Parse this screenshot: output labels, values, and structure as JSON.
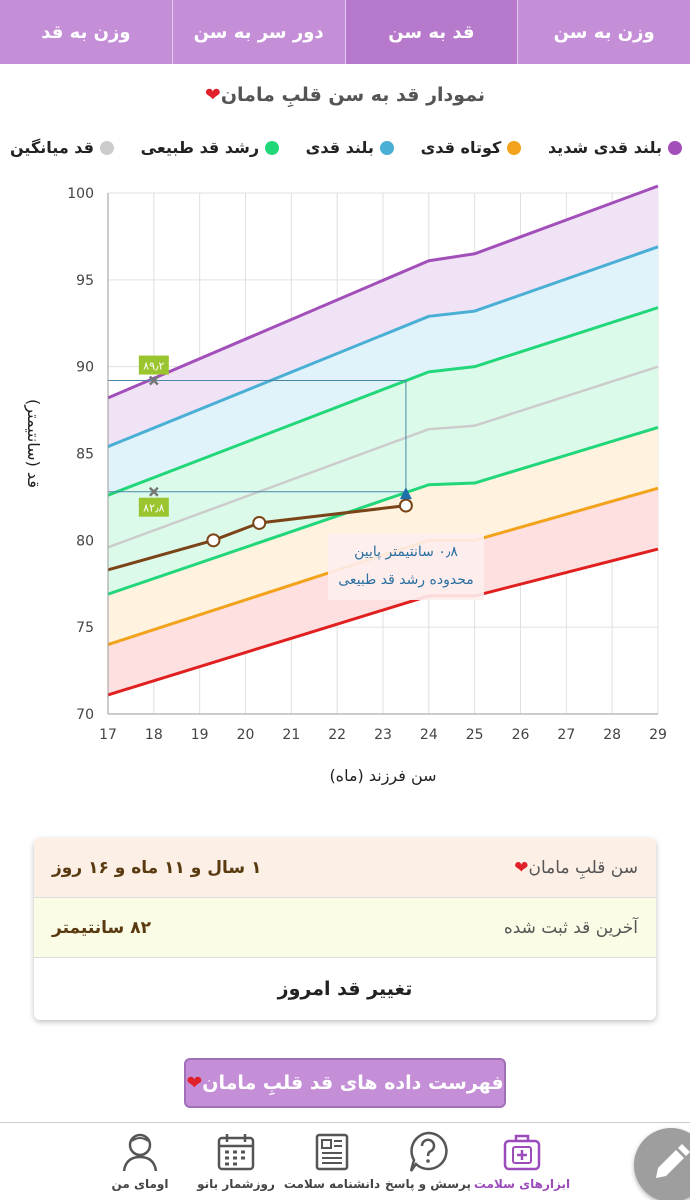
{
  "tabs": [
    {
      "label": "وزن به سن"
    },
    {
      "label": "قد به سن"
    },
    {
      "label": "دور سر به سن"
    },
    {
      "label": "وزن به قد"
    }
  ],
  "chart_title": "نمودار قد به سن قلبِ مامان",
  "legend": [
    {
      "label": "بلند قدی شدید",
      "color": "#a24fba"
    },
    {
      "label": "کوتاه قدی",
      "color": "#f2a21b"
    },
    {
      "label": "بلند قدی",
      "color": "#4aafd5"
    },
    {
      "label": "رشد قد طبیعی",
      "color": "#22d67a"
    },
    {
      "label": "قد میانگین",
      "color": "#cccccc"
    }
  ],
  "chart_data": {
    "type": "line",
    "xlabel": "سن فرزند (ماه)",
    "ylabel": "قد (سانتیمتر)",
    "xlim": [
      17,
      29
    ],
    "ylim": [
      70,
      100
    ],
    "xticks": [
      "17",
      "18",
      "19",
      "20",
      "21",
      "22",
      "23",
      "24",
      "25",
      "26",
      "27",
      "28",
      "29"
    ],
    "yticks": [
      "70",
      "75",
      "80",
      "85",
      "90",
      "95",
      "100"
    ],
    "x": [
      17,
      24,
      25,
      29
    ],
    "series": [
      {
        "name": "very_tall",
        "color": "#a24fba",
        "fill": "#f1e3f6",
        "values": [
          88.2,
          96.1,
          96.5,
          100.4
        ]
      },
      {
        "name": "tall",
        "color": "#4aafd5",
        "fill": "#e1f3fa",
        "values": [
          85.4,
          92.9,
          93.2,
          96.9
        ]
      },
      {
        "name": "normal_upper",
        "color": "#22d67a",
        "fill": "#dcfaea",
        "values": [
          82.6,
          89.7,
          90.0,
          93.4
        ]
      },
      {
        "name": "average",
        "color": "#cccccc",
        "fill": "",
        "values": [
          79.6,
          86.4,
          86.6,
          90.0
        ]
      },
      {
        "name": "normal_lower",
        "color": "#22d67a",
        "fill": "#fff3df",
        "values": [
          76.9,
          83.2,
          83.3,
          86.5
        ]
      },
      {
        "name": "short",
        "color": "#f2a21b",
        "fill": "#ffe0e0",
        "values": [
          74.0,
          80.0,
          80.0,
          83.0
        ]
      },
      {
        "name": "very_short",
        "color": "#e02020",
        "fill": "",
        "values": [
          71.1,
          76.8,
          76.8,
          79.5
        ]
      }
    ],
    "child": {
      "color": "#7a4418",
      "x": [
        17,
        19.3,
        20.3,
        23.5
      ],
      "y": [
        78.3,
        80.0,
        81.0,
        82.0
      ]
    },
    "reference": {
      "x": 18,
      "upper": 89.2,
      "lower": 82.8,
      "upper_label": "۸۹٫۲",
      "lower_label": "۸۲٫۸",
      "tri_x": 23.5,
      "tri_y": 82.6
    },
    "annotation": {
      "line1": "۰٫۸ سانتیمتر پایین",
      "line2": "محدوده رشد قد طبیعی"
    }
  },
  "info": {
    "age_label": "سن قلبِ مامان",
    "age_value": "۱ سال و ۱۱ ماه و ۱۶ روز",
    "height_label": "آخرین قد ثبت شده",
    "height_value": "۸۲ سانتیمتر",
    "change_button": "تغییر قد امروز"
  },
  "list_button": "فهرست داده های قد قلبِ مامان",
  "heart_glyph": "❤",
  "nav": [
    {
      "label": "ابزارهای سلامت",
      "icon": "health-kit-icon"
    },
    {
      "label": "پرسش و پاسخ",
      "icon": "question-icon"
    },
    {
      "label": "دانشنامه سلامت",
      "icon": "encyclopedia-icon"
    },
    {
      "label": "روزشمار بانو",
      "icon": "calendar-icon"
    },
    {
      "label": "اومای من",
      "icon": "profile-icon"
    }
  ],
  "fab_icon": "pencil-icon"
}
